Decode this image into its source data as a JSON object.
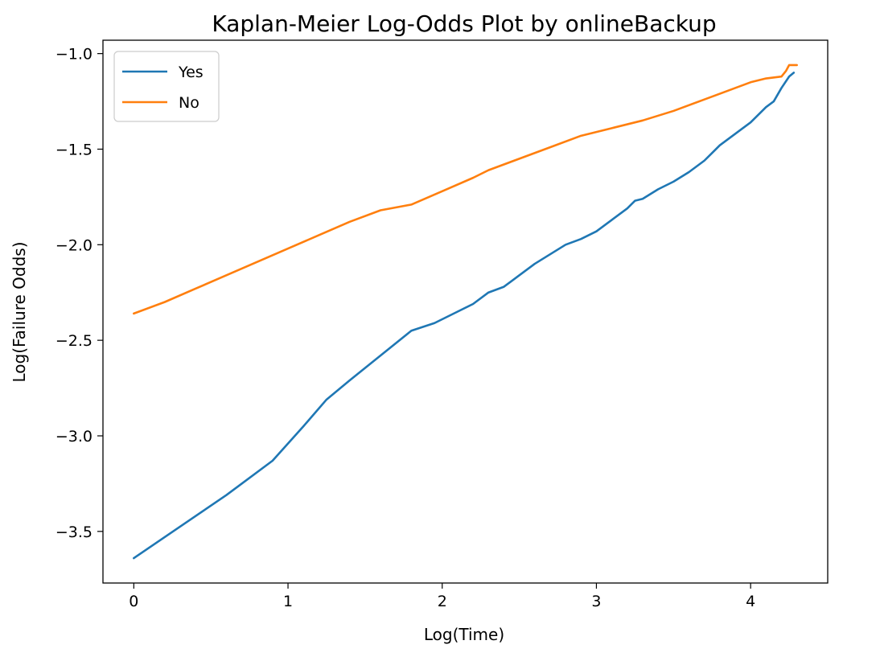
{
  "chart_data": {
    "type": "line",
    "title": "Kaplan-Meier Log-Odds Plot by onlineBackup",
    "xlabel": "Log(Time)",
    "ylabel": "Log(Failure Odds)",
    "xlim": [
      -0.2,
      4.5
    ],
    "ylim": [
      -3.77,
      -0.93
    ],
    "xticks": [
      0,
      1,
      2,
      3,
      4
    ],
    "xtick_labels": [
      "0",
      "1",
      "2",
      "3",
      "4"
    ],
    "yticks": [
      -1.0,
      -1.5,
      -2.0,
      -2.5,
      -3.0,
      -3.5
    ],
    "ytick_labels": [
      "−1.0",
      "−1.5",
      "−2.0",
      "−2.5",
      "−3.0",
      "−3.5"
    ],
    "grid": false,
    "legend_position": "top-left",
    "series": [
      {
        "name": "Yes",
        "color": "#1f77b4",
        "points": [
          [
            0.0,
            -3.64
          ],
          [
            0.2,
            -3.53
          ],
          [
            0.4,
            -3.42
          ],
          [
            0.6,
            -3.31
          ],
          [
            0.7,
            -3.25
          ],
          [
            0.9,
            -3.13
          ],
          [
            1.1,
            -2.95
          ],
          [
            1.25,
            -2.81
          ],
          [
            1.4,
            -2.71
          ],
          [
            1.6,
            -2.58
          ],
          [
            1.8,
            -2.45
          ],
          [
            1.95,
            -2.41
          ],
          [
            2.1,
            -2.35
          ],
          [
            2.2,
            -2.31
          ],
          [
            2.3,
            -2.25
          ],
          [
            2.4,
            -2.22
          ],
          [
            2.5,
            -2.16
          ],
          [
            2.6,
            -2.1
          ],
          [
            2.7,
            -2.05
          ],
          [
            2.8,
            -2.0
          ],
          [
            2.9,
            -1.97
          ],
          [
            3.0,
            -1.93
          ],
          [
            3.1,
            -1.87
          ],
          [
            3.2,
            -1.81
          ],
          [
            3.25,
            -1.77
          ],
          [
            3.3,
            -1.76
          ],
          [
            3.4,
            -1.71
          ],
          [
            3.5,
            -1.67
          ],
          [
            3.6,
            -1.62
          ],
          [
            3.7,
            -1.56
          ],
          [
            3.8,
            -1.48
          ],
          [
            3.9,
            -1.42
          ],
          [
            4.0,
            -1.36
          ],
          [
            4.1,
            -1.28
          ],
          [
            4.15,
            -1.25
          ],
          [
            4.2,
            -1.18
          ],
          [
            4.25,
            -1.12
          ],
          [
            4.28,
            -1.1
          ]
        ]
      },
      {
        "name": "No",
        "color": "#ff7f0e",
        "points": [
          [
            0.0,
            -2.36
          ],
          [
            0.2,
            -2.3
          ],
          [
            0.4,
            -2.23
          ],
          [
            0.6,
            -2.16
          ],
          [
            0.8,
            -2.09
          ],
          [
            1.0,
            -2.02
          ],
          [
            1.2,
            -1.95
          ],
          [
            1.4,
            -1.88
          ],
          [
            1.6,
            -1.82
          ],
          [
            1.8,
            -1.79
          ],
          [
            2.0,
            -1.72
          ],
          [
            2.2,
            -1.65
          ],
          [
            2.3,
            -1.61
          ],
          [
            2.5,
            -1.55
          ],
          [
            2.7,
            -1.49
          ],
          [
            2.9,
            -1.43
          ],
          [
            3.0,
            -1.41
          ],
          [
            3.1,
            -1.39
          ],
          [
            3.3,
            -1.35
          ],
          [
            3.5,
            -1.3
          ],
          [
            3.7,
            -1.24
          ],
          [
            3.9,
            -1.18
          ],
          [
            4.0,
            -1.15
          ],
          [
            4.1,
            -1.13
          ],
          [
            4.2,
            -1.12
          ],
          [
            4.23,
            -1.09
          ],
          [
            4.25,
            -1.06
          ],
          [
            4.3,
            -1.06
          ]
        ]
      }
    ]
  }
}
